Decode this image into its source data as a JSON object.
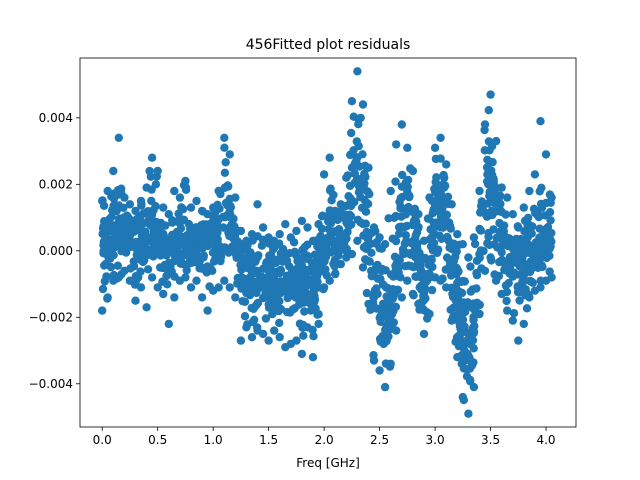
{
  "chart_data": {
    "type": "scatter",
    "title": "456Fitted plot residuals",
    "xlabel": "Freq [GHz]",
    "ylabel": "",
    "xlim": [
      -0.2,
      4.27
    ],
    "ylim": [
      -0.0053,
      0.0058
    ],
    "x_ticks": [
      0.0,
      0.5,
      1.0,
      1.5,
      2.0,
      2.5,
      3.0,
      3.5,
      4.0
    ],
    "x_tick_labels": [
      "0.0",
      "0.5",
      "1.0",
      "1.5",
      "2.0",
      "2.5",
      "3.0",
      "3.5",
      "4.0"
    ],
    "y_ticks": [
      -0.004,
      -0.002,
      0.0,
      0.002,
      0.004
    ],
    "y_tick_labels": [
      "−0.004",
      "−0.002",
      "0.000",
      "0.002",
      "0.004"
    ],
    "grid": false,
    "marker_color": "#1f77b4",
    "series": [
      {
        "x": [
          0.0,
          0.05,
          0.1,
          0.15,
          0.2,
          0.25,
          0.3,
          0.35,
          0.4,
          0.45,
          0.5,
          0.55,
          0.6,
          0.65,
          0.7,
          0.75,
          0.8,
          0.85,
          0.9,
          0.95,
          1.0,
          1.05,
          1.1,
          1.15,
          1.2,
          1.25,
          1.3,
          1.35,
          1.4,
          1.45,
          1.5,
          1.55,
          1.6,
          1.65,
          1.7,
          1.75,
          1.8,
          1.85,
          1.9,
          1.95,
          2.0,
          2.05,
          2.1,
          2.15,
          2.2,
          2.25,
          2.3,
          2.35,
          2.4,
          2.45,
          2.5,
          2.55,
          2.6,
          2.65,
          2.7,
          2.75,
          2.8,
          2.85,
          2.9,
          2.95,
          3.0,
          3.05,
          3.1,
          3.15,
          3.2,
          3.25,
          3.3,
          3.35,
          3.4,
          3.45,
          3.5,
          3.55,
          3.6,
          3.65,
          3.7,
          3.75,
          3.8,
          3.85,
          3.9,
          3.95,
          4.0,
          4.05
        ],
        "y_center": [
          0.0002,
          0.0003,
          0.0005,
          0.0004,
          0.0006,
          0.0003,
          0.0002,
          0.0005,
          0.0003,
          0.0006,
          0.0004,
          0.0002,
          -0.0002,
          0.0001,
          0.0003,
          0.0004,
          0.0002,
          0.0003,
          0.0001,
          0.0002,
          0.0003,
          0.0004,
          0.0012,
          0.0008,
          0.0003,
          -0.0006,
          -0.0005,
          -0.0008,
          -0.0009,
          -0.001,
          -0.0008,
          -0.0011,
          -0.0012,
          -0.0009,
          -0.0012,
          -0.001,
          -0.0011,
          -0.0009,
          -0.0008,
          -0.0006,
          0.0002,
          0.0006,
          0.0004,
          0.0003,
          0.0005,
          0.0018,
          0.0025,
          0.0015,
          0.0004,
          -0.0012,
          -0.0016,
          -0.0018,
          -0.0014,
          -0.0005,
          0.0008,
          0.001,
          0.0005,
          -0.0003,
          -0.0012,
          -0.0004,
          0.0009,
          0.0012,
          0.0006,
          -0.0004,
          -0.0014,
          -0.0026,
          -0.0032,
          -0.0022,
          -0.0003,
          0.0015,
          0.0022,
          0.0012,
          0.0005,
          -0.0002,
          -0.0004,
          -0.0003,
          -0.0006,
          -0.0001,
          0.0002,
          0.0004,
          0.0003,
          0.0002
        ],
        "y_max": [
          0.0015,
          0.0018,
          0.0024,
          0.0034,
          0.0016,
          0.0014,
          0.0012,
          0.0015,
          0.0019,
          0.0028,
          0.0024,
          0.0013,
          0.0011,
          0.0018,
          0.0016,
          0.0021,
          0.0013,
          0.0015,
          0.0012,
          0.0011,
          0.0013,
          0.0018,
          0.0034,
          0.0029,
          0.0016,
          0.0006,
          0.0003,
          0.0005,
          0.0014,
          0.0007,
          0.0004,
          0.0003,
          0.0005,
          0.0008,
          0.0004,
          0.0006,
          0.0009,
          0.0007,
          0.0003,
          0.0008,
          0.0023,
          0.0028,
          0.0012,
          0.0014,
          0.0022,
          0.0045,
          0.0054,
          0.0044,
          0.0025,
          0.0007,
          0.0004,
          0.0002,
          0.0018,
          0.0032,
          0.0038,
          0.0031,
          0.0024,
          0.0011,
          0.0003,
          0.0016,
          0.0031,
          0.0034,
          0.0026,
          0.0014,
          0.0005,
          0.0002,
          -0.0002,
          0.0004,
          0.0018,
          0.0038,
          0.0047,
          0.0033,
          0.0019,
          0.0016,
          0.0011,
          0.0007,
          0.0013,
          0.0018,
          0.0023,
          0.0039,
          0.0029,
          0.0016
        ],
        "y_min": [
          -0.0018,
          -0.0014,
          -0.0009,
          -0.0008,
          -0.0006,
          -0.0009,
          -0.0015,
          -0.0011,
          -0.0017,
          -0.0008,
          -0.0011,
          -0.0013,
          -0.0022,
          -0.0014,
          -0.0009,
          -0.0008,
          -0.0011,
          -0.0009,
          -0.0014,
          -0.0018,
          -0.0012,
          -0.0011,
          -0.0009,
          -0.0011,
          -0.0014,
          -0.0027,
          -0.0023,
          -0.0026,
          -0.0024,
          -0.0025,
          -0.0027,
          -0.0024,
          -0.0026,
          -0.0029,
          -0.0028,
          -0.0027,
          -0.0031,
          -0.0023,
          -0.0032,
          -0.0022,
          -0.0011,
          -0.0009,
          -0.0007,
          -0.0004,
          -0.0002,
          -0.0001,
          0.0003,
          -0.0005,
          -0.0016,
          -0.0033,
          -0.0036,
          -0.0041,
          -0.0034,
          -0.0024,
          -0.0014,
          -0.0009,
          -0.0013,
          -0.0016,
          -0.0025,
          -0.0019,
          -0.0008,
          -0.0009,
          -0.0011,
          -0.0021,
          -0.0032,
          -0.0044,
          -0.0049,
          -0.0041,
          -0.0019,
          -0.0006,
          -0.0002,
          -0.0009,
          -0.0013,
          -0.0018,
          -0.0021,
          -0.0027,
          -0.0022,
          -0.0014,
          -0.0012,
          -0.0011,
          -0.0009,
          -0.0008
        ]
      }
    ]
  }
}
